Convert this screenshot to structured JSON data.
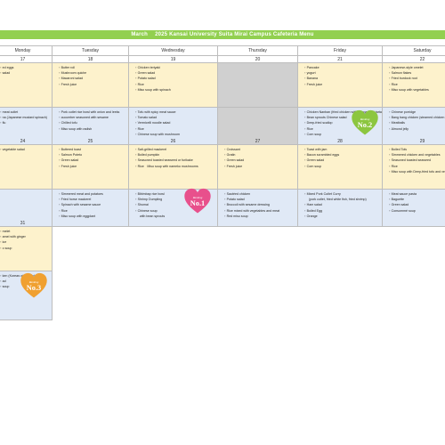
{
  "title": "March　 2025  Kansai University Suita Mirai Campus Cafeteria Menu",
  "days": [
    "Monday",
    "Tuesday",
    "Wednesday",
    "Thursday",
    "Friday",
    "Saturday"
  ],
  "colors": {
    "banner": "#92d050",
    "lunch": "#fdf2cc",
    "dinner": "#e0e9f6",
    "closed": "#d0d0d0",
    "pink": "#e8508c",
    "green": "#8cc63f",
    "orange": "#f0a030"
  },
  "week1": {
    "dates": [
      "17",
      "18",
      "19",
      "20",
      "21",
      "22"
    ],
    "lunch": [
      [
        "ed eggs",
        "",
        "salad"
      ],
      [
        "Butter roll",
        "Mushroom quiche",
        "Macaroni salad",
        "Fresh juice"
      ],
      [
        "Chicken teriyaki",
        "Green salad",
        "Potato salad",
        "Rice",
        "Miso soup with spinach"
      ],
      [],
      [
        "Pancake",
        "yogurt",
        "Banana",
        "Fresh juice"
      ],
      [
        "Japanese-style omelet",
        "Salmon flakes",
        "Fried burdock root",
        "Rice",
        "Miso soup with vegetables"
      ]
    ],
    "dinner": [
      [
        "meat cutlet",
        "",
        "",
        "",
        "na (Japanese mustard spinach)",
        "",
        "",
        "",
        "",
        "flu"
      ],
      [
        "Pork cutlet rice bowl with onion and leeks",
        "cucumber seasoned with sesame",
        "Chilled tofu",
        "Miso soup with radish"
      ],
      [
        "Tofu with spicy meat sauce",
        "Tomato salad",
        "Vermicelli noodle salad",
        "Rice",
        "Chinese soup with mushroom"
      ],
      [],
      [
        "Chicken Nanban (fried chicken with vinegar and tartar sauce)",
        "Bean sprouts Chinese salad",
        "Deep-fried scallop",
        "Rice",
        "Corn soup"
      ],
      [
        "Chinese porridge",
        "Bang bang chicken (steamed chicken with sesame sauce)",
        "Meatballs",
        "Almond jelly"
      ]
    ]
  },
  "week2": {
    "dates": [
      "24",
      "25",
      "26",
      "27",
      "28",
      "29"
    ],
    "lunch": [
      [
        "",
        "vegetable  salad"
      ],
      [
        "Buttered toast",
        "Salmon Poteto",
        "Green salad",
        "Fresh juice"
      ],
      [
        "Salt-grilled mackerel",
        "Boiled pumpkin",
        "Seasoned toasted seaweed or furikake",
        "Rice　Miso soup with nameko mushrooms"
      ],
      [
        "Croissant",
        "Gratin",
        "Green  salad",
        "Fresh juice"
      ],
      [
        "Toast with jam",
        "Bacon scrambled eggs",
        "Green salad",
        "Corn soup"
      ],
      [
        "Boiled Tofu",
        "Simmered chicken and vegetables",
        "Seasoned toasted seaweed",
        "Rice",
        "Miso soup with Deep-fried tofu and vegetables"
      ]
    ],
    "dinner": [
      [],
      [
        "Simmered meat and potatoes",
        "Fried horse mackerel",
        "Spinach with sesame sauce",
        "Rice",
        "Miso soup with eggplant"
      ],
      [
        "Bibimbap rice bowl",
        "Shrimp Dumpling",
        "Shumai",
        "Chinese soup",
        "with bean sprouts"
      ],
      [
        "Sautéed chicken",
        "Potato salad",
        "Broccoli with sesame dressing",
        "Rice mixed with vegetables and meat",
        "Red miso soup"
      ],
      [
        "Mixed Pork Cutlet Curry",
        "(pork cutlet, fried white fish, fried shrimp)",
        "Ham salad",
        "Boiled Egg",
        "Orange"
      ],
      [
        "Meat  sauce pasta",
        "Baguette",
        "Green salad",
        "Consommé soup"
      ]
    ]
  },
  "week3": {
    "dates": [
      "31"
    ],
    "lunch": [
      [
        "melet",
        "amel with ginger",
        "",
        "ice",
        "o soup"
      ]
    ],
    "dinner": [
      [
        "ken (Korean-style chicken)",
        "",
        "ad",
        "",
        "",
        "",
        "soup"
      ]
    ]
  },
  "badges": {
    "pink": {
      "top": "Ranking",
      "num": "No.1"
    },
    "green": {
      "top": "Ranking",
      "num": "No.2"
    },
    "orange": {
      "top": "Ranking",
      "num": "No.3"
    }
  }
}
